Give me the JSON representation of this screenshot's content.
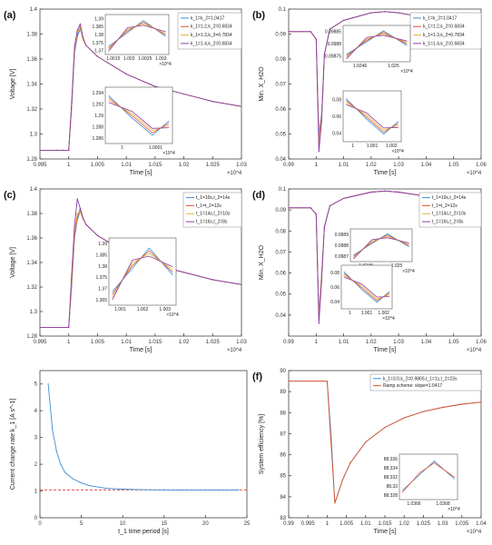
{
  "colors": {
    "blue": "#3a8fd6",
    "orange": "#e0552b",
    "yellow": "#e5b43a",
    "purple": "#8a3cae",
    "red_dash": "#e03030"
  },
  "chart_data": [
    {
      "panel": "(a)",
      "type": "line",
      "xlabel": "Time [s]",
      "ylabel": "Voltage [V]",
      "xlim": [
        0.995,
        1.03
      ],
      "ylim": [
        1.28,
        1.4
      ],
      "x_exponent": "×10^4",
      "xticks": [
        "0.995",
        "1",
        "1.005",
        "1.01",
        "1.015",
        "1.02",
        "1.025",
        "1.03"
      ],
      "yticks": [
        "1.28",
        "1.3",
        "1.32",
        "1.34",
        "1.36",
        "1.38",
        "1.4"
      ],
      "legend": [
        "k_1=k_2=1.0417",
        "k_1=1.2,k_2=0.6834",
        "k_1=1.3,k_2=0.7834",
        "k_1=1.4,k_2=0.6834"
      ],
      "x": [
        0.995,
        0.998,
        0.999,
        1.0,
        1.0005,
        1.001,
        1.0015,
        1.002,
        1.0025,
        1.003,
        1.005,
        1.01,
        1.015,
        1.02,
        1.025,
        1.03
      ],
      "series": [
        {
          "name": "k_1=k_2=1.0417",
          "values": [
            1.287,
            1.287,
            1.287,
            1.287,
            1.32,
            1.365,
            1.378,
            1.384,
            1.375,
            1.371,
            1.362,
            1.348,
            1.338,
            1.332,
            1.326,
            1.322
          ]
        },
        {
          "name": "k_1=1.2,k_2=0.6834",
          "values": [
            1.287,
            1.287,
            1.287,
            1.287,
            1.322,
            1.367,
            1.38,
            1.386,
            1.376,
            1.371,
            1.362,
            1.348,
            1.338,
            1.332,
            1.326,
            1.322
          ]
        },
        {
          "name": "k_1=1.3,k_2=0.7834",
          "values": [
            1.287,
            1.287,
            1.287,
            1.287,
            1.323,
            1.368,
            1.381,
            1.385,
            1.375,
            1.371,
            1.362,
            1.348,
            1.338,
            1.332,
            1.326,
            1.322
          ]
        },
        {
          "name": "k_1=1.4,k_2=0.6834",
          "values": [
            1.287,
            1.287,
            1.287,
            1.287,
            1.325,
            1.37,
            1.383,
            1.388,
            1.377,
            1.371,
            1.362,
            1.348,
            1.338,
            1.332,
            1.326,
            1.322
          ]
        }
      ],
      "insets": [
        {
          "xticks": [
            "1.0015",
            "1.002",
            "1.0025",
            "1.003"
          ],
          "yticks": [
            "1.37",
            "1.375",
            "1.38",
            "1.385",
            "1.39"
          ],
          "x_exponent": "×10^4"
        },
        {
          "xticks": [
            "1",
            "1.0001"
          ],
          "yticks": [
            "1.286",
            "1.288",
            "1.29",
            "1.292",
            "1.294"
          ],
          "x_exponent": "×10^4"
        }
      ]
    },
    {
      "panel": "(b)",
      "type": "line",
      "xlabel": "Time [s]",
      "ylabel": "Min. X_H2O",
      "xlim": [
        0.99,
        1.06
      ],
      "ylim": [
        0.04,
        0.1
      ],
      "x_exponent": "×10^4",
      "xticks": [
        "0.99",
        "1",
        "1.01",
        "1.02",
        "1.03",
        "1.04",
        "1.05",
        "1.06"
      ],
      "yticks": [
        "0.04",
        "0.05",
        "0.06",
        "0.07",
        "0.08",
        "0.09",
        "0.1"
      ],
      "legend": [
        "k_1=k_2=1.0417",
        "k_1=1.2,k_2=0.6834",
        "k_1=1.3,k_2=0.7834",
        "k_1=1.4,k_2=0.6834"
      ],
      "x": [
        0.99,
        0.995,
        0.998,
        1.0,
        1.001,
        1.002,
        1.003,
        1.005,
        1.01,
        1.02,
        1.025,
        1.03,
        1.04,
        1.05,
        1.06
      ],
      "series": [
        {
          "name": "k_1=k_2=1.0417",
          "values": [
            0.091,
            0.091,
            0.091,
            0.088,
            0.05,
            0.058,
            0.082,
            0.092,
            0.0955,
            0.0985,
            0.099,
            0.0985,
            0.0965,
            0.0945,
            0.092
          ]
        },
        {
          "name": "k_1=1.2,k_2=0.6834",
          "values": [
            0.091,
            0.091,
            0.091,
            0.088,
            0.048,
            0.057,
            0.082,
            0.092,
            0.0955,
            0.0985,
            0.099,
            0.0985,
            0.0965,
            0.0945,
            0.092
          ]
        },
        {
          "name": "k_1=1.3,k_2=0.7834",
          "values": [
            0.091,
            0.091,
            0.091,
            0.088,
            0.046,
            0.056,
            0.082,
            0.092,
            0.0955,
            0.0985,
            0.099,
            0.0985,
            0.0965,
            0.0945,
            0.092
          ]
        },
        {
          "name": "k_1=1.4,k_2=0.6834",
          "values": [
            0.091,
            0.091,
            0.091,
            0.088,
            0.043,
            0.055,
            0.082,
            0.092,
            0.0955,
            0.0985,
            0.099,
            0.0985,
            0.0965,
            0.0945,
            0.092
          ]
        }
      ],
      "insets": [
        {
          "xticks": [
            "1.0246",
            "1.025"
          ],
          "yticks": [
            "0.09875",
            "0.0988",
            "0.09885"
          ],
          "x_exponent": "×10^4"
        },
        {
          "xticks": [
            "1",
            "1.001",
            "1.002"
          ],
          "yticks": [
            "0.04",
            "0.06",
            "0.08"
          ],
          "x_exponent": "×10^4"
        }
      ]
    },
    {
      "panel": "(c)",
      "type": "line",
      "xlabel": "Time [s]",
      "ylabel": "Voltage [V]",
      "xlim": [
        0.995,
        1.03
      ],
      "ylim": [
        1.28,
        1.4
      ],
      "x_exponent": "×10^4",
      "xticks": [
        "0.995",
        "1",
        "1.005",
        "1.01",
        "1.015",
        "1.02",
        "1.025",
        "1.03"
      ],
      "yticks": [
        "1.28",
        "1.3",
        "1.32",
        "1.34",
        "1.36",
        "1.38",
        "1.4"
      ],
      "legend": [
        "t_1=10s,t_2=14s",
        "t_1=t_2=12s",
        "t_1=14s,t_2=10s",
        "t_1=16s,t_2=8s"
      ],
      "x": [
        0.995,
        0.998,
        1.0,
        1.0005,
        1.001,
        1.0015,
        1.002,
        1.0025,
        1.003,
        1.005,
        1.01,
        1.015,
        1.02,
        1.025,
        1.03
      ],
      "series": [
        {
          "name": "t_1=10s,t_2=14s",
          "values": [
            1.287,
            1.287,
            1.287,
            1.32,
            1.36,
            1.375,
            1.382,
            1.376,
            1.371,
            1.362,
            1.348,
            1.338,
            1.332,
            1.326,
            1.322
          ]
        },
        {
          "name": "t_1=t_2=12s",
          "values": [
            1.287,
            1.287,
            1.287,
            1.322,
            1.362,
            1.377,
            1.384,
            1.376,
            1.371,
            1.362,
            1.348,
            1.338,
            1.332,
            1.326,
            1.322
          ]
        },
        {
          "name": "t_1=14s,t_2=10s",
          "values": [
            1.287,
            1.287,
            1.287,
            1.326,
            1.366,
            1.38,
            1.381,
            1.375,
            1.371,
            1.362,
            1.348,
            1.338,
            1.332,
            1.326,
            1.322
          ]
        },
        {
          "name": "t_1=16s,t_2=8s",
          "values": [
            1.287,
            1.287,
            1.287,
            1.33,
            1.37,
            1.392,
            1.384,
            1.376,
            1.371,
            1.362,
            1.348,
            1.338,
            1.332,
            1.326,
            1.322
          ]
        }
      ],
      "insets": [
        {
          "xticks": [
            "1.001",
            "1.002",
            "1.003"
          ],
          "yticks": [
            "1.365",
            "1.37",
            "1.375",
            "1.38",
            "1.385",
            "1.39"
          ],
          "x_exponent": "×10^4"
        }
      ]
    },
    {
      "panel": "(d)",
      "type": "line",
      "xlabel": "Time [s]",
      "ylabel": "Min. X_H2O",
      "xlim": [
        0.99,
        1.06
      ],
      "ylim": [
        0.03,
        0.1
      ],
      "x_exponent": "×10^4",
      "xticks": [
        "0.99",
        "1",
        "1.01",
        "1.02",
        "1.03",
        "1.04",
        "1.05",
        "1.06"
      ],
      "yticks": [
        "0.04",
        "0.05",
        "0.06",
        "0.07",
        "0.08",
        "0.09",
        "0.1"
      ],
      "legend": [
        "t_1=10s,t_2=14s",
        "t_1=t_2=12s",
        "t_1=14s,t_2=10s",
        "t_1=16s,t_2=8s"
      ],
      "x": [
        0.99,
        0.995,
        0.998,
        1.0,
        1.001,
        1.002,
        1.003,
        1.005,
        1.01,
        1.02,
        1.025,
        1.03,
        1.04,
        1.05,
        1.06
      ],
      "series": [
        {
          "name": "t_1=10s,t_2=14s",
          "values": [
            0.091,
            0.091,
            0.091,
            0.088,
            0.04,
            0.06,
            0.082,
            0.092,
            0.0955,
            0.0985,
            0.099,
            0.0985,
            0.0965,
            0.0945,
            0.092
          ]
        },
        {
          "name": "t_1=t_2=12s",
          "values": [
            0.091,
            0.091,
            0.091,
            0.088,
            0.039,
            0.059,
            0.082,
            0.092,
            0.0955,
            0.0985,
            0.099,
            0.0985,
            0.0965,
            0.0945,
            0.092
          ]
        },
        {
          "name": "t_1=14s,t_2=10s",
          "values": [
            0.091,
            0.091,
            0.091,
            0.088,
            0.038,
            0.058,
            0.082,
            0.092,
            0.0955,
            0.0985,
            0.099,
            0.0985,
            0.0965,
            0.0945,
            0.092
          ]
        },
        {
          "name": "t_1=16s,t_2=8s",
          "values": [
            0.091,
            0.091,
            0.091,
            0.088,
            0.036,
            0.056,
            0.082,
            0.092,
            0.0955,
            0.0985,
            0.099,
            0.0985,
            0.0965,
            0.0945,
            0.092
          ]
        }
      ],
      "insets": [
        {
          "xticks": [
            "1.0248",
            "1.025"
          ],
          "yticks": [
            "0.0987",
            "0.0988",
            "0.0989"
          ],
          "x_exponent": "×10^4"
        },
        {
          "xticks": [
            "1",
            "1.001",
            "1.002"
          ],
          "yticks": [
            "0.04",
            "0.06",
            "0.08"
          ],
          "x_exponent": "×10^4"
        }
      ]
    },
    {
      "panel": "(e)",
      "type": "line",
      "xlabel": "t_1 time period [s]",
      "ylabel": "Current change rate k_1 [A s^-1]",
      "xlim": [
        0,
        25
      ],
      "ylim": [
        0,
        5.5
      ],
      "xticks": [
        "0",
        "5",
        "10",
        "15",
        "20",
        "25"
      ],
      "yticks": [
        "0",
        "1",
        "2",
        "3",
        "4",
        "5"
      ],
      "x": [
        1,
        1.5,
        2,
        2.5,
        3,
        4,
        5,
        6,
        8,
        10,
        12,
        15,
        20,
        24
      ],
      "series": [
        {
          "name": "k_1",
          "values": [
            5.0,
            3.3,
            2.5,
            2.0,
            1.7,
            1.45,
            1.3,
            1.2,
            1.1,
            1.07,
            1.05,
            1.04,
            1.04,
            1.04
          ]
        }
      ],
      "reference_line": {
        "y": 1.0417,
        "style": "dashed red"
      }
    },
    {
      "panel": "(f)",
      "type": "line",
      "xlabel": "Time [s]",
      "ylabel": "System efficiency [%]",
      "xlim": [
        0.99,
        1.04
      ],
      "ylim": [
        83,
        90
      ],
      "x_exponent": "×10^4",
      "xticks": [
        "0.99",
        "0.995",
        "1",
        "1.005",
        "1.01",
        "1.015",
        "1.02",
        "1.025",
        "1.03",
        "1.035",
        "1.04"
      ],
      "yticks": [
        "83",
        "84",
        "85",
        "86",
        "87",
        "88",
        "89",
        "90"
      ],
      "legend": [
        "k_1=3.0,k_2=0.9865,t_1=1s,t_2=23s",
        "Ramp scheme: slope=1.0417"
      ],
      "x": [
        0.99,
        0.995,
        1.0,
        1.001,
        1.002,
        1.004,
        1.006,
        1.01,
        1.015,
        1.02,
        1.025,
        1.03,
        1.035,
        1.04
      ],
      "series": [
        {
          "name": "k_1=3.0,k_2=0.9865,t_1=1s,t_2=23s",
          "values": [
            89.5,
            89.5,
            89.5,
            87.0,
            83.7,
            84.8,
            85.6,
            86.6,
            87.3,
            87.75,
            88.05,
            88.25,
            88.4,
            88.5
          ]
        },
        {
          "name": "Ramp scheme: slope=1.0417",
          "values": [
            89.5,
            89.5,
            89.5,
            86.6,
            83.7,
            84.8,
            85.6,
            86.6,
            87.3,
            87.75,
            88.05,
            88.25,
            88.4,
            88.5
          ]
        }
      ],
      "insets": [
        {
          "xticks": [
            "1.0366",
            "1.0368"
          ],
          "yticks": [
            "88.328",
            "88.33",
            "88.332",
            "88.334",
            "88.336"
          ],
          "x_exponent": "×10^4"
        }
      ]
    }
  ]
}
